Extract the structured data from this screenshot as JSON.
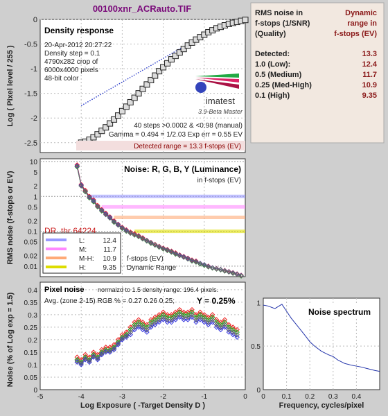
{
  "file_title": "00100xnr_ACRauto.TIF",
  "results_panel": {
    "header_left": [
      "RMS noise in",
      "f-stops (1/SNR)",
      "(Quality)"
    ],
    "header_right": [
      "Dynamic",
      "range in",
      "f-stops (EV)"
    ],
    "rows": [
      {
        "label": "Detected:",
        "value": "13.3"
      },
      {
        "label": "1.0   (Low):",
        "value": "12.4"
      },
      {
        "label": "0.5   (Medium)",
        "value": "11.7"
      },
      {
        "label": "0.25 (Med-High)",
        "value": "10.9"
      },
      {
        "label": "0.1   (High)",
        "value": "9.35"
      }
    ]
  },
  "density_panel": {
    "title": "Density response",
    "info_lines": [
      "20-Apr-2012 20:27:22",
      "Density step = 0.1",
      "4790x282 crop of",
      "6000x4000 pixels",
      "48-bit color"
    ],
    "logo_text": "imatest",
    "version_text": "3.9-Beta  Master",
    "steps_text": "40 steps >0.0002 & <0.98 (manual)",
    "gamma_text": "Gamma = 0.494 = 1/2.03  Exp err = 0.55 EV",
    "detected_range_text": "Detected range = 13.3 f-stops (EV)",
    "ylabel": "Log ( Pixel level / 255 )"
  },
  "noise_panel": {
    "title": "Noise: R, G, B, Y (Luminance)",
    "subtitle": "in f-stops (EV)",
    "dr_text": "DR_thr 64224",
    "ylabel": "RMS noise (f-stops or EV)",
    "footer_lines": [
      "f-stops (EV)",
      "Dynamic Range"
    ],
    "legend": [
      {
        "label": "L:",
        "value": "12.4",
        "color": "#9999ff"
      },
      {
        "label": "M:",
        "value": "11.7",
        "color": "#ff88ff"
      },
      {
        "label": "M-H:",
        "value": "10.9",
        "color": "#ffaa77"
      },
      {
        "label": "H:",
        "value": "9.35",
        "color": "#dddd00"
      }
    ]
  },
  "pixel_panel": {
    "title": "Pixel noise",
    "norm_text": "normalzd to 1.5 density range: 196.4 pixels.",
    "avg_text": "Avg. (zone 2-15) RGB % = 0.27  0.26  0.25;",
    "y_text": "Y = 0.25%",
    "ylabel": "Noise (% of Log exp = 1.5)",
    "xlabel": "Log Exposure ( -Target Density D )"
  },
  "spectrum_panel": {
    "title": "Noise spectrum",
    "xlabel": "Frequency, cycles/pixel"
  },
  "chart_data": [
    {
      "type": "scatter",
      "name_hint": "density-response",
      "x": [
        -4.0,
        -3.9,
        -3.8,
        -3.7,
        -3.6,
        -3.5,
        -3.4,
        -3.3,
        -3.2,
        -3.1,
        -3.0,
        -2.9,
        -2.8,
        -2.7,
        -2.6,
        -2.5,
        -2.4,
        -2.3,
        -2.2,
        -2.1,
        -2.0,
        -1.9,
        -1.8,
        -1.7,
        -1.6,
        -1.5,
        -1.4,
        -1.3,
        -1.2,
        -1.1,
        -1.0,
        -0.9,
        -0.8,
        -0.7,
        -0.6,
        -0.5,
        -0.4,
        -0.3,
        -0.2,
        -0.1,
        0.0
      ],
      "values": [
        -2.5,
        -2.48,
        -2.44,
        -2.39,
        -2.33,
        -2.26,
        -2.19,
        -2.11,
        -2.03,
        -1.95,
        -1.86,
        -1.77,
        -1.68,
        -1.59,
        -1.5,
        -1.41,
        -1.32,
        -1.23,
        -1.14,
        -1.05,
        -0.97,
        -0.89,
        -0.81,
        -0.74,
        -0.67,
        -0.6,
        -0.53,
        -0.47,
        -0.41,
        -0.36,
        -0.31,
        -0.26,
        -0.22,
        -0.18,
        -0.15,
        -0.12,
        -0.09,
        -0.07,
        -0.05,
        -0.03,
        -0.01
      ],
      "fit_line": {
        "x": [
          -4.0,
          -1.5
        ],
        "y": [
          -1.75,
          -0.55
        ]
      },
      "xlim": [
        -5,
        0
      ],
      "ylim": [
        -2.7,
        0
      ],
      "yticks": [
        -2.5,
        -2,
        -1.5,
        -1,
        -0.5,
        0
      ]
    },
    {
      "type": "line",
      "name_hint": "noise-fstops",
      "x": [
        -4.1,
        -4.0,
        -3.9,
        -3.8,
        -3.7,
        -3.6,
        -3.5,
        -3.4,
        -3.3,
        -3.2,
        -3.1,
        -3.0,
        -2.9,
        -2.8,
        -2.7,
        -2.6,
        -2.5,
        -2.4,
        -2.3,
        -2.2,
        -2.1,
        -2.0,
        -1.9,
        -1.8,
        -1.7,
        -1.6,
        -1.5,
        -1.4,
        -1.3,
        -1.2,
        -1.1,
        -1.0,
        -0.9,
        -0.8,
        -0.7,
        -0.6,
        -0.5,
        -0.4,
        -0.3,
        -0.2,
        -0.1
      ],
      "series": [
        {
          "color": "#ee2222",
          "values": [
            8,
            2.2,
            1.5,
            1.0,
            0.8,
            0.55,
            0.42,
            0.33,
            0.26,
            0.2,
            0.16,
            0.13,
            0.11,
            0.095,
            0.085,
            0.075,
            0.065,
            0.055,
            0.048,
            0.042,
            0.037,
            0.033,
            0.03,
            0.027,
            0.024,
            0.021,
            0.019,
            0.017,
            0.015,
            0.014,
            0.012,
            0.011,
            0.01,
            0.009,
            0.0085,
            0.008,
            0.0075,
            0.007,
            0.0065,
            0.006,
            0.0055
          ]
        },
        {
          "color": "#22aa22",
          "values": [
            7,
            2.0,
            1.35,
            0.9,
            0.7,
            0.5,
            0.38,
            0.3,
            0.24,
            0.18,
            0.15,
            0.12,
            0.1,
            0.088,
            0.078,
            0.07,
            0.06,
            0.052,
            0.045,
            0.04,
            0.035,
            0.031,
            0.028,
            0.025,
            0.022,
            0.02,
            0.018,
            0.016,
            0.014,
            0.013,
            0.0115,
            0.0105,
            0.0095,
            0.0088,
            0.0082,
            0.0078,
            0.0072,
            0.0068,
            0.0062,
            0.0058,
            0.0052
          ]
        },
        {
          "color": "#3333dd",
          "values": [
            7.5,
            2.1,
            1.4,
            0.95,
            0.75,
            0.52,
            0.4,
            0.31,
            0.25,
            0.19,
            0.155,
            0.125,
            0.105,
            0.09,
            0.08,
            0.072,
            0.062,
            0.054,
            0.047,
            0.041,
            0.036,
            0.032,
            0.029,
            0.026,
            0.023,
            0.0205,
            0.0185,
            0.0165,
            0.0145,
            0.0135,
            0.012,
            0.011,
            0.0098,
            0.009,
            0.0084,
            0.008,
            0.0074,
            0.0069,
            0.0064,
            0.0059,
            0.0054
          ]
        },
        {
          "color": "#666666",
          "values": [
            7.2,
            2.0,
            1.38,
            0.92,
            0.72,
            0.51,
            0.39,
            0.3,
            0.24,
            0.185,
            0.15,
            0.122,
            0.102,
            0.089,
            0.079,
            0.071,
            0.061,
            0.053,
            0.046,
            0.0405,
            0.0355,
            0.0315,
            0.0285,
            0.0255,
            0.0225,
            0.02,
            0.018,
            0.016,
            0.0142,
            0.0132,
            0.0118,
            0.0108,
            0.0096,
            0.0089,
            0.0083,
            0.0079,
            0.0073,
            0.0068,
            0.0063,
            0.0058,
            0.0053
          ]
        }
      ],
      "thresholds": [
        {
          "value": 1.0,
          "color": "#9999ff",
          "from_x": -3.8
        },
        {
          "value": 0.5,
          "color": "#ff88ff",
          "from_x": -3.5
        },
        {
          "value": 0.25,
          "color": "#ffaa77",
          "from_x": -3.2
        },
        {
          "value": 0.1,
          "color": "#dddd00",
          "from_x": -2.7
        }
      ],
      "yscale": "log",
      "ylim": [
        0.005,
        12
      ],
      "xlim": [
        -5,
        0
      ],
      "yticks": [
        10,
        5,
        2,
        1,
        0.5,
        0.2,
        0.1,
        0.05,
        0.02,
        0.01
      ]
    },
    {
      "type": "line",
      "name_hint": "pixel-noise",
      "x": [
        -4.1,
        -4.0,
        -3.9,
        -3.8,
        -3.7,
        -3.6,
        -3.5,
        -3.4,
        -3.3,
        -3.2,
        -3.1,
        -3.0,
        -2.9,
        -2.8,
        -2.7,
        -2.6,
        -2.5,
        -2.4,
        -2.3,
        -2.2,
        -2.1,
        -2.0,
        -1.9,
        -1.8,
        -1.7,
        -1.6,
        -1.5,
        -1.4,
        -1.3,
        -1.2,
        -1.1,
        -1.0,
        -0.9,
        -0.8,
        -0.7,
        -0.6,
        -0.5,
        -0.4,
        -0.3,
        -0.2
      ],
      "series": [
        {
          "color": "#ee2222",
          "values": [
            0.13,
            0.12,
            0.14,
            0.13,
            0.15,
            0.14,
            0.16,
            0.17,
            0.17,
            0.18,
            0.2,
            0.22,
            0.23,
            0.25,
            0.27,
            0.28,
            0.27,
            0.26,
            0.28,
            0.29,
            0.3,
            0.31,
            0.3,
            0.3,
            0.31,
            0.32,
            0.31,
            0.31,
            0.32,
            0.3,
            0.31,
            0.3,
            0.29,
            0.3,
            0.28,
            0.27,
            0.28,
            0.26,
            0.25,
            0.24
          ]
        },
        {
          "color": "#22aa22",
          "values": [
            0.12,
            0.11,
            0.13,
            0.12,
            0.14,
            0.13,
            0.15,
            0.16,
            0.16,
            0.17,
            0.19,
            0.21,
            0.22,
            0.24,
            0.26,
            0.27,
            0.26,
            0.25,
            0.27,
            0.28,
            0.29,
            0.3,
            0.29,
            0.29,
            0.3,
            0.31,
            0.3,
            0.3,
            0.31,
            0.29,
            0.3,
            0.29,
            0.28,
            0.29,
            0.27,
            0.26,
            0.27,
            0.25,
            0.24,
            0.23
          ]
        },
        {
          "color": "#3333dd",
          "values": [
            0.11,
            0.1,
            0.12,
            0.11,
            0.13,
            0.12,
            0.14,
            0.15,
            0.15,
            0.16,
            0.18,
            0.2,
            0.21,
            0.22,
            0.24,
            0.25,
            0.24,
            0.23,
            0.25,
            0.26,
            0.27,
            0.28,
            0.27,
            0.27,
            0.28,
            0.29,
            0.28,
            0.28,
            0.29,
            0.27,
            0.28,
            0.27,
            0.26,
            0.27,
            0.25,
            0.24,
            0.25,
            0.23,
            0.22,
            0.21
          ]
        },
        {
          "color": "#666666",
          "values": [
            0.115,
            0.105,
            0.125,
            0.115,
            0.135,
            0.125,
            0.145,
            0.155,
            0.155,
            0.165,
            0.185,
            0.205,
            0.215,
            0.23,
            0.25,
            0.26,
            0.25,
            0.24,
            0.26,
            0.27,
            0.28,
            0.29,
            0.28,
            0.28,
            0.29,
            0.3,
            0.29,
            0.29,
            0.3,
            0.28,
            0.29,
            0.28,
            0.27,
            0.28,
            0.26,
            0.25,
            0.26,
            0.24,
            0.23,
            0.22
          ]
        }
      ],
      "xlim": [
        -5,
        0
      ],
      "ylim": [
        0,
        0.43
      ],
      "xticks": [
        -5,
        -4,
        -3,
        -2,
        -1,
        0
      ],
      "yticks": [
        0,
        0.05,
        0.1,
        0.15,
        0.2,
        0.25,
        0.3,
        0.35,
        0.4
      ]
    },
    {
      "type": "line",
      "name_hint": "noise-spectrum",
      "x": [
        0.0,
        0.02,
        0.05,
        0.08,
        0.1,
        0.12,
        0.15,
        0.18,
        0.2,
        0.22,
        0.25,
        0.28,
        0.3,
        0.32,
        0.35,
        0.38,
        0.4,
        0.42,
        0.45,
        0.48,
        0.5
      ],
      "values": [
        0.97,
        0.96,
        0.93,
        0.98,
        0.9,
        0.82,
        0.72,
        0.62,
        0.55,
        0.5,
        0.44,
        0.4,
        0.38,
        0.34,
        0.3,
        0.28,
        0.27,
        0.26,
        0.24,
        0.22,
        0.21
      ],
      "xlim": [
        0,
        0.5
      ],
      "ylim": [
        0,
        1.05
      ],
      "xticks": [
        0,
        0.1,
        0.2,
        0.3,
        0.4
      ],
      "yticks": [
        0,
        0.5,
        1
      ]
    }
  ]
}
